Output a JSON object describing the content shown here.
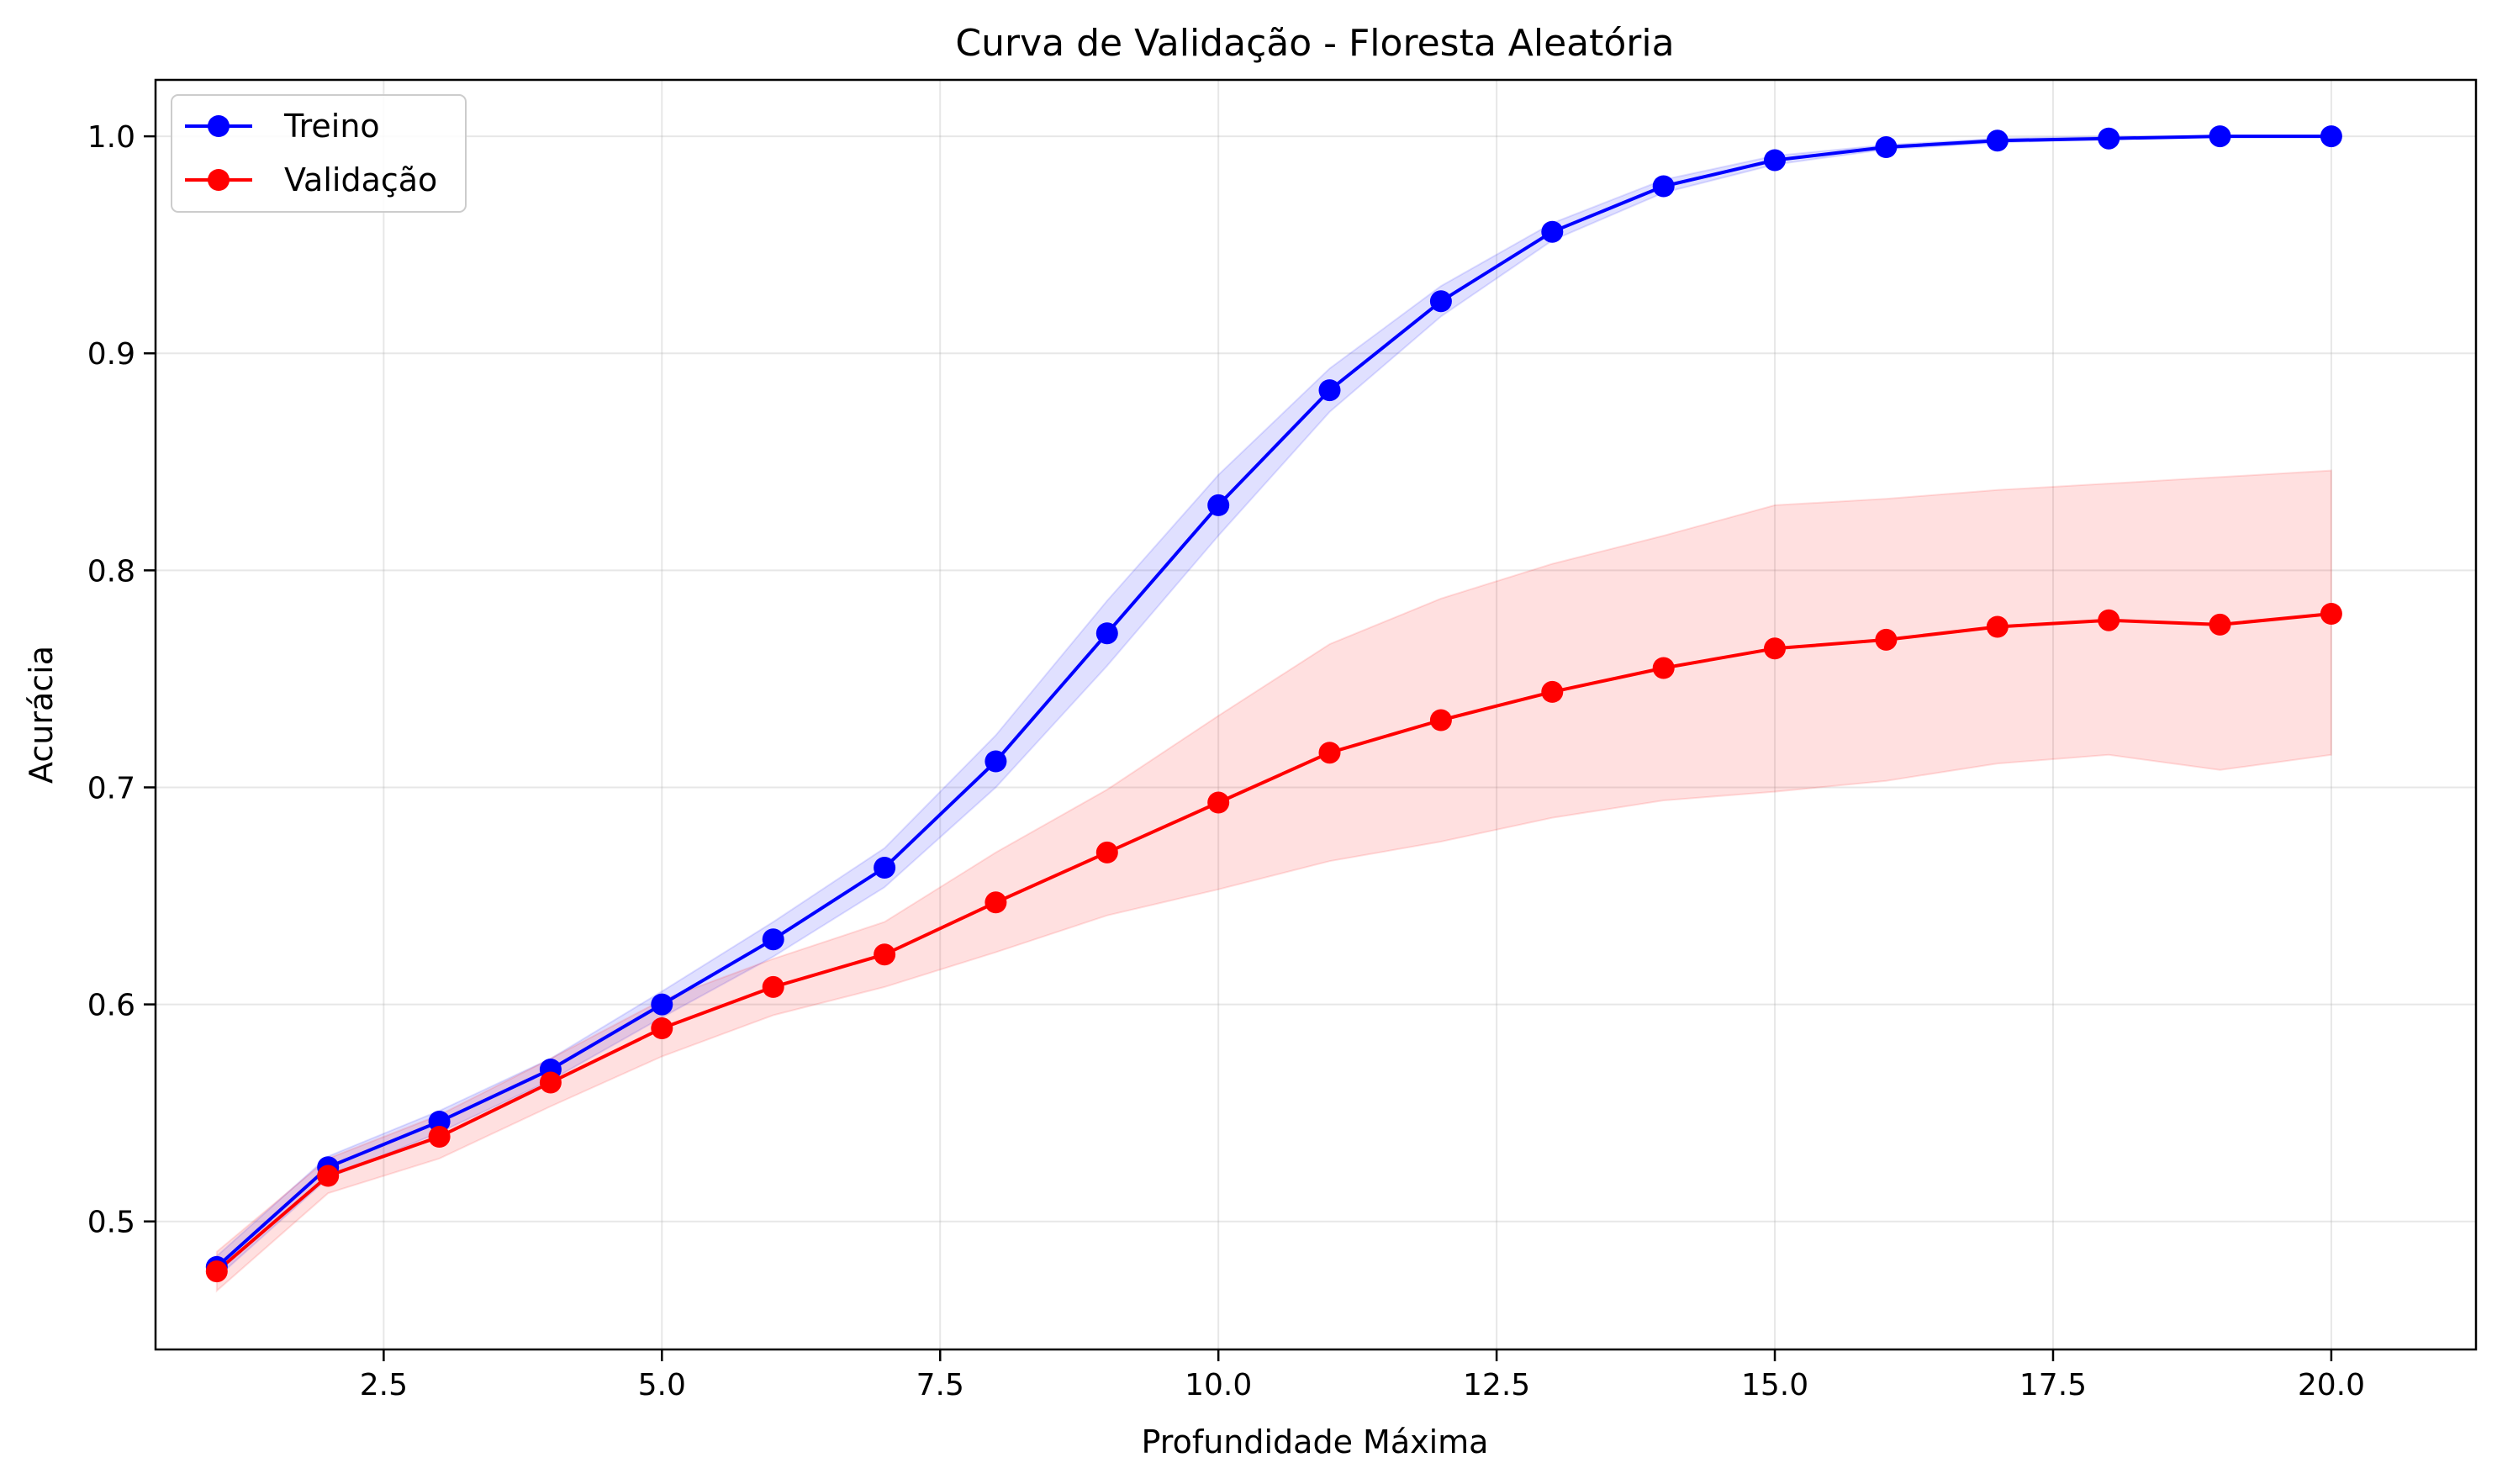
{
  "chart_data": {
    "type": "line",
    "title": "Curva de Validação - Floresta Aleatória",
    "xlabel": "Profundidade Máxima",
    "ylabel": "Acurácia",
    "xlim": [
      0.45,
      21.3
    ],
    "ylim": [
      0.441,
      1.026
    ],
    "xticks": [
      2.5,
      5.0,
      7.5,
      10.0,
      12.5,
      15.0,
      17.5,
      20.0
    ],
    "xtick_labels": [
      "2.5",
      "5.0",
      "7.5",
      "10.0",
      "12.5",
      "15.0",
      "17.5",
      "20.0"
    ],
    "yticks": [
      0.5,
      0.6,
      0.7,
      0.8,
      0.9,
      1.0
    ],
    "ytick_labels": [
      "0.5",
      "0.6",
      "0.7",
      "0.8",
      "0.9",
      "1.0"
    ],
    "grid": true,
    "legend_position": "top-left",
    "x": [
      1,
      2,
      3,
      4,
      5,
      6,
      7,
      8,
      9,
      10,
      11,
      12,
      13,
      14,
      15,
      16,
      17,
      18,
      19,
      20
    ],
    "series": [
      {
        "name": "Treino",
        "color": "#0000ff",
        "band_color": "#0000ff",
        "values": [
          0.479,
          0.525,
          0.546,
          0.57,
          0.6,
          0.63,
          0.663,
          0.712,
          0.771,
          0.83,
          0.883,
          0.924,
          0.956,
          0.977,
          0.989,
          0.995,
          0.998,
          0.999,
          1.0,
          1.0
        ],
        "lower": [
          0.474,
          0.52,
          0.541,
          0.565,
          0.594,
          0.622,
          0.654,
          0.7,
          0.756,
          0.816,
          0.873,
          0.917,
          0.952,
          0.974,
          0.987,
          0.994,
          0.997,
          0.999,
          1.0,
          1.0
        ],
        "upper": [
          0.484,
          0.53,
          0.551,
          0.575,
          0.606,
          0.638,
          0.672,
          0.724,
          0.786,
          0.844,
          0.893,
          0.931,
          0.96,
          0.98,
          0.991,
          0.996,
          0.999,
          1.0,
          1.0,
          1.0
        ]
      },
      {
        "name": "Validação",
        "color": "#ff0000",
        "band_color": "#ff0000",
        "values": [
          0.477,
          0.521,
          0.539,
          0.564,
          0.589,
          0.608,
          0.623,
          0.647,
          0.67,
          0.693,
          0.716,
          0.731,
          0.744,
          0.755,
          0.764,
          0.768,
          0.774,
          0.777,
          0.775,
          0.78
        ],
        "lower": [
          0.468,
          0.513,
          0.529,
          0.553,
          0.576,
          0.595,
          0.608,
          0.624,
          0.641,
          0.653,
          0.666,
          0.675,
          0.686,
          0.694,
          0.698,
          0.703,
          0.711,
          0.715,
          0.708,
          0.715
        ],
        "upper": [
          0.486,
          0.529,
          0.549,
          0.575,
          0.602,
          0.621,
          0.638,
          0.67,
          0.699,
          0.733,
          0.766,
          0.787,
          0.803,
          0.816,
          0.83,
          0.833,
          0.837,
          0.84,
          0.843,
          0.846
        ]
      }
    ]
  }
}
